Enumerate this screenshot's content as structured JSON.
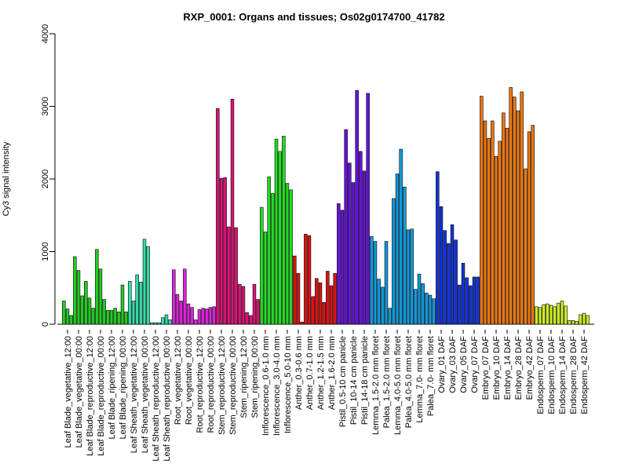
{
  "chart_data": {
    "type": "bar",
    "title": "RXP_0001: Organs and tissues; Os02g0174700_41782",
    "xlabel": "",
    "ylabel": "Cy3 signal intensity",
    "ylim": [
      0,
      4000
    ],
    "yticks": [
      0,
      1000,
      2000,
      3000,
      4000
    ],
    "grid": false,
    "groups": [
      {
        "label": "Leaf Blade_vegetative_12:00",
        "color": "#22cc22",
        "values": [
          320,
          210,
          120
        ]
      },
      {
        "label": "Leaf Blade_vegetative_00:00",
        "color": "#22cc22",
        "values": [
          930,
          740,
          390
        ]
      },
      {
        "label": "Leaf Blade_reproductive_12:00",
        "color": "#22cc22",
        "values": [
          590,
          360,
          220
        ]
      },
      {
        "label": "Leaf Blade_reproductive_00:00",
        "color": "#22cc22",
        "values": [
          1030,
          760,
          340
        ]
      },
      {
        "label": "Leaf Blade_ripening_12:00",
        "color": "#22cc22",
        "values": [
          190,
          190,
          220
        ]
      },
      {
        "label": "Leaf Blade_ripening_00:00",
        "color": "#22cc22",
        "values": [
          170,
          540,
          170
        ]
      },
      {
        "label": "Leaf Sheath_vegetative_12:00",
        "color": "#33ddaa",
        "values": [
          590,
          320,
          680
        ]
      },
      {
        "label": "Leaf Sheath_vegetative_00:00",
        "color": "#33ddaa",
        "values": [
          580,
          1170,
          1070
        ]
      },
      {
        "label": "Leaf Sheath_reproductive_12:00",
        "color": "#33ddaa",
        "values": [
          20,
          20,
          20
        ]
      },
      {
        "label": "Leaf Sheath_reproductive_00:00",
        "color": "#33ddaa",
        "values": [
          90,
          130,
          60
        ]
      },
      {
        "label": "Root_vegetative_12:00",
        "color": "#dd22dd",
        "values": [
          750,
          410,
          320
        ]
      },
      {
        "label": "Root_vegetative_00:00",
        "color": "#dd22dd",
        "values": [
          760,
          280,
          230
        ]
      },
      {
        "label": "Root_reproductive_12:00",
        "color": "#dd22dd",
        "values": [
          60,
          200,
          220
        ]
      },
      {
        "label": "Root_reproductive_00:00",
        "color": "#dd22dd",
        "values": [
          210,
          230,
          240
        ]
      },
      {
        "label": "Stem_reproductive_12:00",
        "color": "#dd1177",
        "values": [
          2970,
          2010,
          2020
        ]
      },
      {
        "label": "Stem_reproductive_00:00",
        "color": "#dd1177",
        "values": [
          1340,
          3100,
          1330
        ]
      },
      {
        "label": "Stem_ripening_12:00",
        "color": "#dd1177",
        "values": [
          550,
          520,
          160
        ]
      },
      {
        "label": "Stem_ripening_00:00",
        "color": "#dd1177",
        "values": [
          120,
          550,
          340
        ]
      },
      {
        "label": "Inflorescence_0.6-1.0 mm",
        "color": "#22dd22",
        "values": [
          1610,
          1270,
          2030
        ]
      },
      {
        "label": "Inflorescence_3.0-4.0 mm",
        "color": "#22dd22",
        "values": [
          1800,
          2550,
          2380
        ]
      },
      {
        "label": "Inflorescence_5.0-10 mm",
        "color": "#22dd22",
        "values": [
          2590,
          1940,
          1850
        ]
      },
      {
        "label": "Anther_0.3-0.6 mm",
        "color": "#dd1111",
        "values": [
          940,
          700,
          30
        ]
      },
      {
        "label": "Anther_0.7-1.0 mm",
        "color": "#dd1111",
        "values": [
          1240,
          1220,
          380
        ]
      },
      {
        "label": "Anther_1.2-1.5 mm",
        "color": "#dd1111",
        "values": [
          630,
          570,
          300
        ]
      },
      {
        "label": "Anther_1.6-2.0 mm",
        "color": "#dd1111",
        "values": [
          730,
          530,
          700
        ]
      },
      {
        "label": "Pistil_0.5-10 cm panicle",
        "color": "#6611dd",
        "values": [
          1660,
          1570,
          2680
        ]
      },
      {
        "label": "Pistil_10-14 cm panicle",
        "color": "#6611dd",
        "values": [
          2220,
          1950,
          3220
        ]
      },
      {
        "label": "Pistil_14-18 cm panicle",
        "color": "#6611dd",
        "values": [
          2380,
          2110,
          3180
        ]
      },
      {
        "label": "Lemma_1.5-2.0 mm floret",
        "color": "#1199dd",
        "values": [
          1210,
          1140,
          620
        ]
      },
      {
        "label": "Palea_1.5-2.0 mm floret",
        "color": "#1199dd",
        "values": [
          510,
          1140,
          220
        ]
      },
      {
        "label": "Lemma_4.0-5.0 mm floret",
        "color": "#1199dd",
        "values": [
          1730,
          2070,
          2410
        ]
      },
      {
        "label": "Palea_4.0-5.0 mm floret",
        "color": "#1199dd",
        "values": [
          1890,
          1300,
          1310
        ]
      },
      {
        "label": "Lemma_7.0- mm floret",
        "color": "#1199dd",
        "values": [
          480,
          690,
          560
        ]
      },
      {
        "label": "Palea_7.0- mm floret",
        "color": "#1199dd",
        "values": [
          430,
          400,
          350
        ]
      },
      {
        "label": "Ovary_01 DAF",
        "color": "#1133dd",
        "values": [
          2100,
          1620,
          1290
        ]
      },
      {
        "label": "Ovary_03 DAF",
        "color": "#1133dd",
        "values": [
          1110,
          1370,
          1160
        ]
      },
      {
        "label": "Ovary_05 DAF",
        "color": "#1133dd",
        "values": [
          540,
          840,
          640
        ]
      },
      {
        "label": "Ovary_07 DAF",
        "color": "#1133dd",
        "values": [
          530,
          650,
          650
        ]
      },
      {
        "label": "Embryo_07 DAF",
        "color": "#ee7711",
        "values": [
          3140,
          2800,
          2560
        ]
      },
      {
        "label": "Embryo_10 DAF",
        "color": "#ee7711",
        "values": [
          2800,
          2310,
          2520
        ]
      },
      {
        "label": "Embryo_14 DAF",
        "color": "#ee7711",
        "values": [
          2910,
          2700,
          3260
        ]
      },
      {
        "label": "Embryo_28 DAF",
        "color": "#ee7711",
        "values": [
          3130,
          2940,
          3200
        ]
      },
      {
        "label": "Embryo_42 DAF",
        "color": "#ee7711",
        "values": [
          2140,
          2650,
          2740
        ]
      },
      {
        "label": "Endosperm_07 DAF",
        "color": "#ccee22",
        "values": [
          240,
          230,
          270
        ]
      },
      {
        "label": "Endosperm_10 DAF",
        "color": "#ccee22",
        "values": [
          280,
          260,
          240
        ]
      },
      {
        "label": "Endosperm_14 DAF",
        "color": "#ccee22",
        "values": [
          290,
          320,
          250
        ]
      },
      {
        "label": "Endosperm_28 DAF",
        "color": "#ccee22",
        "values": [
          50,
          50,
          40
        ]
      },
      {
        "label": "Endosperm_42 DAF",
        "color": "#ccee22",
        "values": [
          130,
          150,
          120
        ]
      }
    ]
  }
}
